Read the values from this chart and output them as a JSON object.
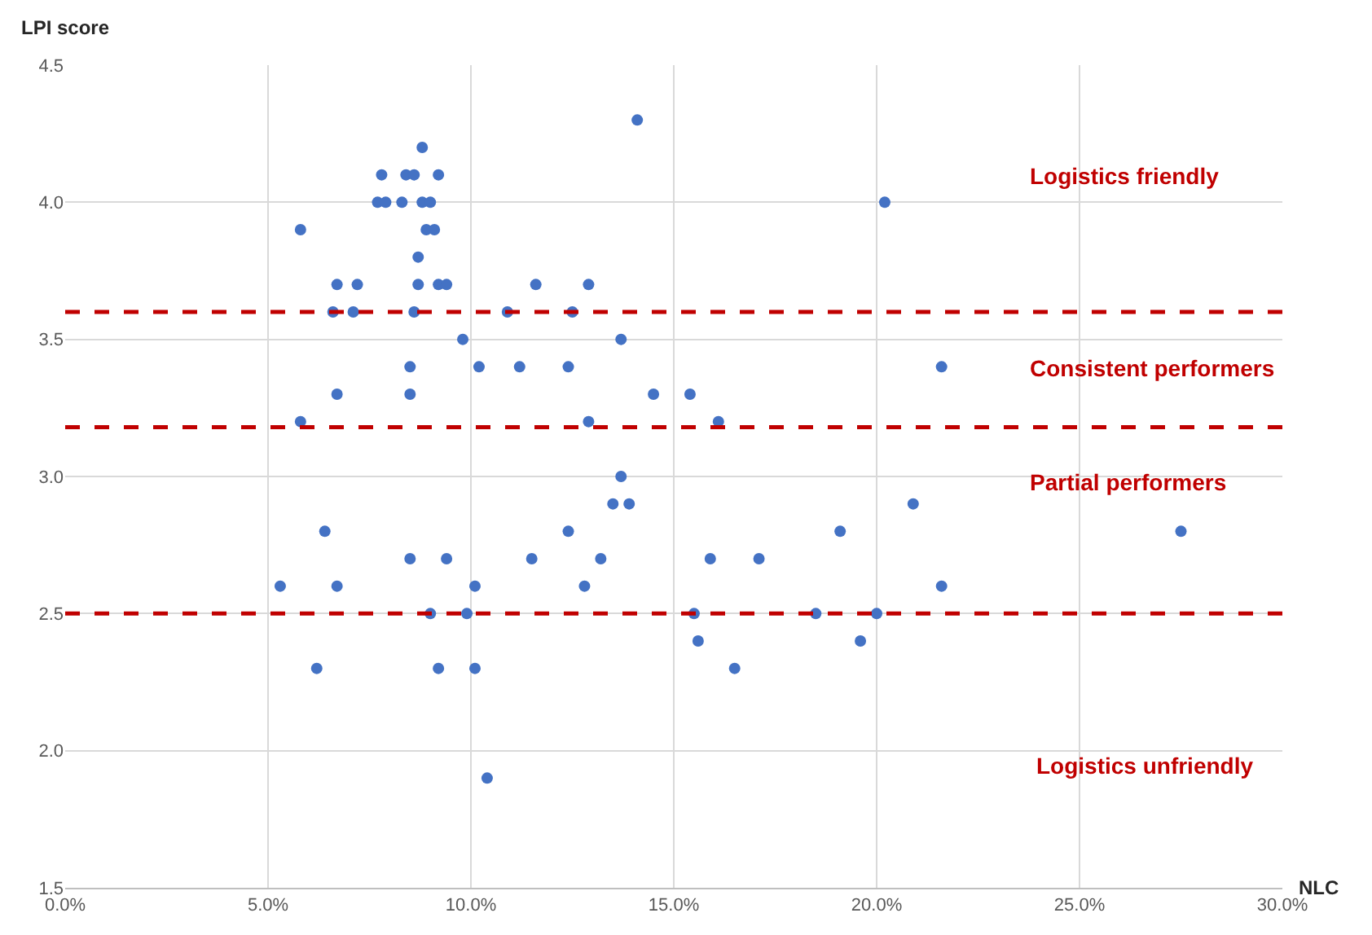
{
  "chart_data": {
    "type": "scatter",
    "xlabel": "NLC",
    "ylabel": "LPI score",
    "x": [
      14.1,
      8.8,
      7.8,
      8.4,
      8.6,
      9.2,
      7.7,
      7.9,
      8.3,
      8.8,
      9.0,
      5.8,
      8.9,
      9.1,
      8.7,
      6.7,
      7.2,
      8.7,
      9.2,
      9.4,
      11.6,
      12.9,
      6.6,
      7.1,
      8.6,
      10.9,
      12.5,
      9.8,
      13.7,
      8.5,
      10.2,
      11.2,
      12.4,
      6.7,
      8.5,
      14.5,
      5.8,
      12.9,
      13.7,
      13.5,
      13.9,
      6.4,
      12.4,
      8.5,
      9.4,
      11.5,
      13.2,
      5.3,
      6.7,
      10.1,
      12.8,
      9.0,
      9.9,
      6.2,
      9.2,
      10.1,
      10.4,
      20.2,
      15.4,
      16.1,
      21.6,
      20.9,
      19.1,
      15.9,
      17.1,
      21.6,
      15.5,
      18.5,
      20.0,
      15.6,
      19.6,
      16.5,
      27.5
    ],
    "values": [
      4.3,
      4.2,
      4.1,
      4.1,
      4.1,
      4.1,
      4.0,
      4.0,
      4.0,
      4.0,
      4.0,
      3.9,
      3.9,
      3.9,
      3.8,
      3.7,
      3.7,
      3.7,
      3.7,
      3.7,
      3.7,
      3.7,
      3.6,
      3.6,
      3.6,
      3.6,
      3.6,
      3.5,
      3.5,
      3.4,
      3.4,
      3.4,
      3.4,
      3.3,
      3.3,
      3.3,
      3.2,
      3.2,
      3.0,
      2.9,
      2.9,
      2.8,
      2.8,
      2.7,
      2.7,
      2.7,
      2.7,
      2.6,
      2.6,
      2.6,
      2.6,
      2.5,
      2.5,
      2.3,
      2.3,
      2.3,
      1.9,
      4.0,
      3.3,
      3.2,
      3.4,
      2.9,
      2.8,
      2.7,
      2.7,
      2.6,
      2.5,
      2.5,
      2.5,
      2.4,
      2.4,
      2.3,
      2.8
    ],
    "color": "#4472c4",
    "marker": "circle",
    "xlim": [
      0,
      30
    ],
    "xticks": [
      {
        "value": 0,
        "label": "0.0%"
      },
      {
        "value": 5,
        "label": "5.0%"
      },
      {
        "value": 10,
        "label": "10.0%"
      },
      {
        "value": 15,
        "label": "15.0%"
      },
      {
        "value": 20,
        "label": "20.0%"
      },
      {
        "value": 25,
        "label": "25.0%"
      },
      {
        "value": 30,
        "label": "30.0%"
      }
    ],
    "ylim": [
      1.5,
      4.5
    ],
    "yticks": [
      {
        "value": 1.5,
        "label": "1.5"
      },
      {
        "value": 2,
        "label": "2.0"
      },
      {
        "value": 2.5,
        "label": "2.5"
      },
      {
        "value": 3,
        "label": "3.0"
      },
      {
        "value": 3.5,
        "label": "3.5"
      },
      {
        "value": 4,
        "label": "4.0"
      },
      {
        "value": 4.5,
        "label": "4.5"
      }
    ],
    "grid": true,
    "ref_lines": [
      {
        "axis": "y",
        "value": 3.6,
        "color": "#c00000",
        "line_style": "dashed"
      },
      {
        "axis": "y",
        "value": 3.18,
        "color": "#c00000",
        "line_style": "dashed"
      },
      {
        "axis": "y",
        "value": 2.5,
        "color": "#c00000",
        "line_style": "dashed"
      }
    ],
    "annotations": [
      "Logistics friendly",
      "Consistent performers",
      "Partial performers",
      "Logistics unfriendly"
    ]
  }
}
